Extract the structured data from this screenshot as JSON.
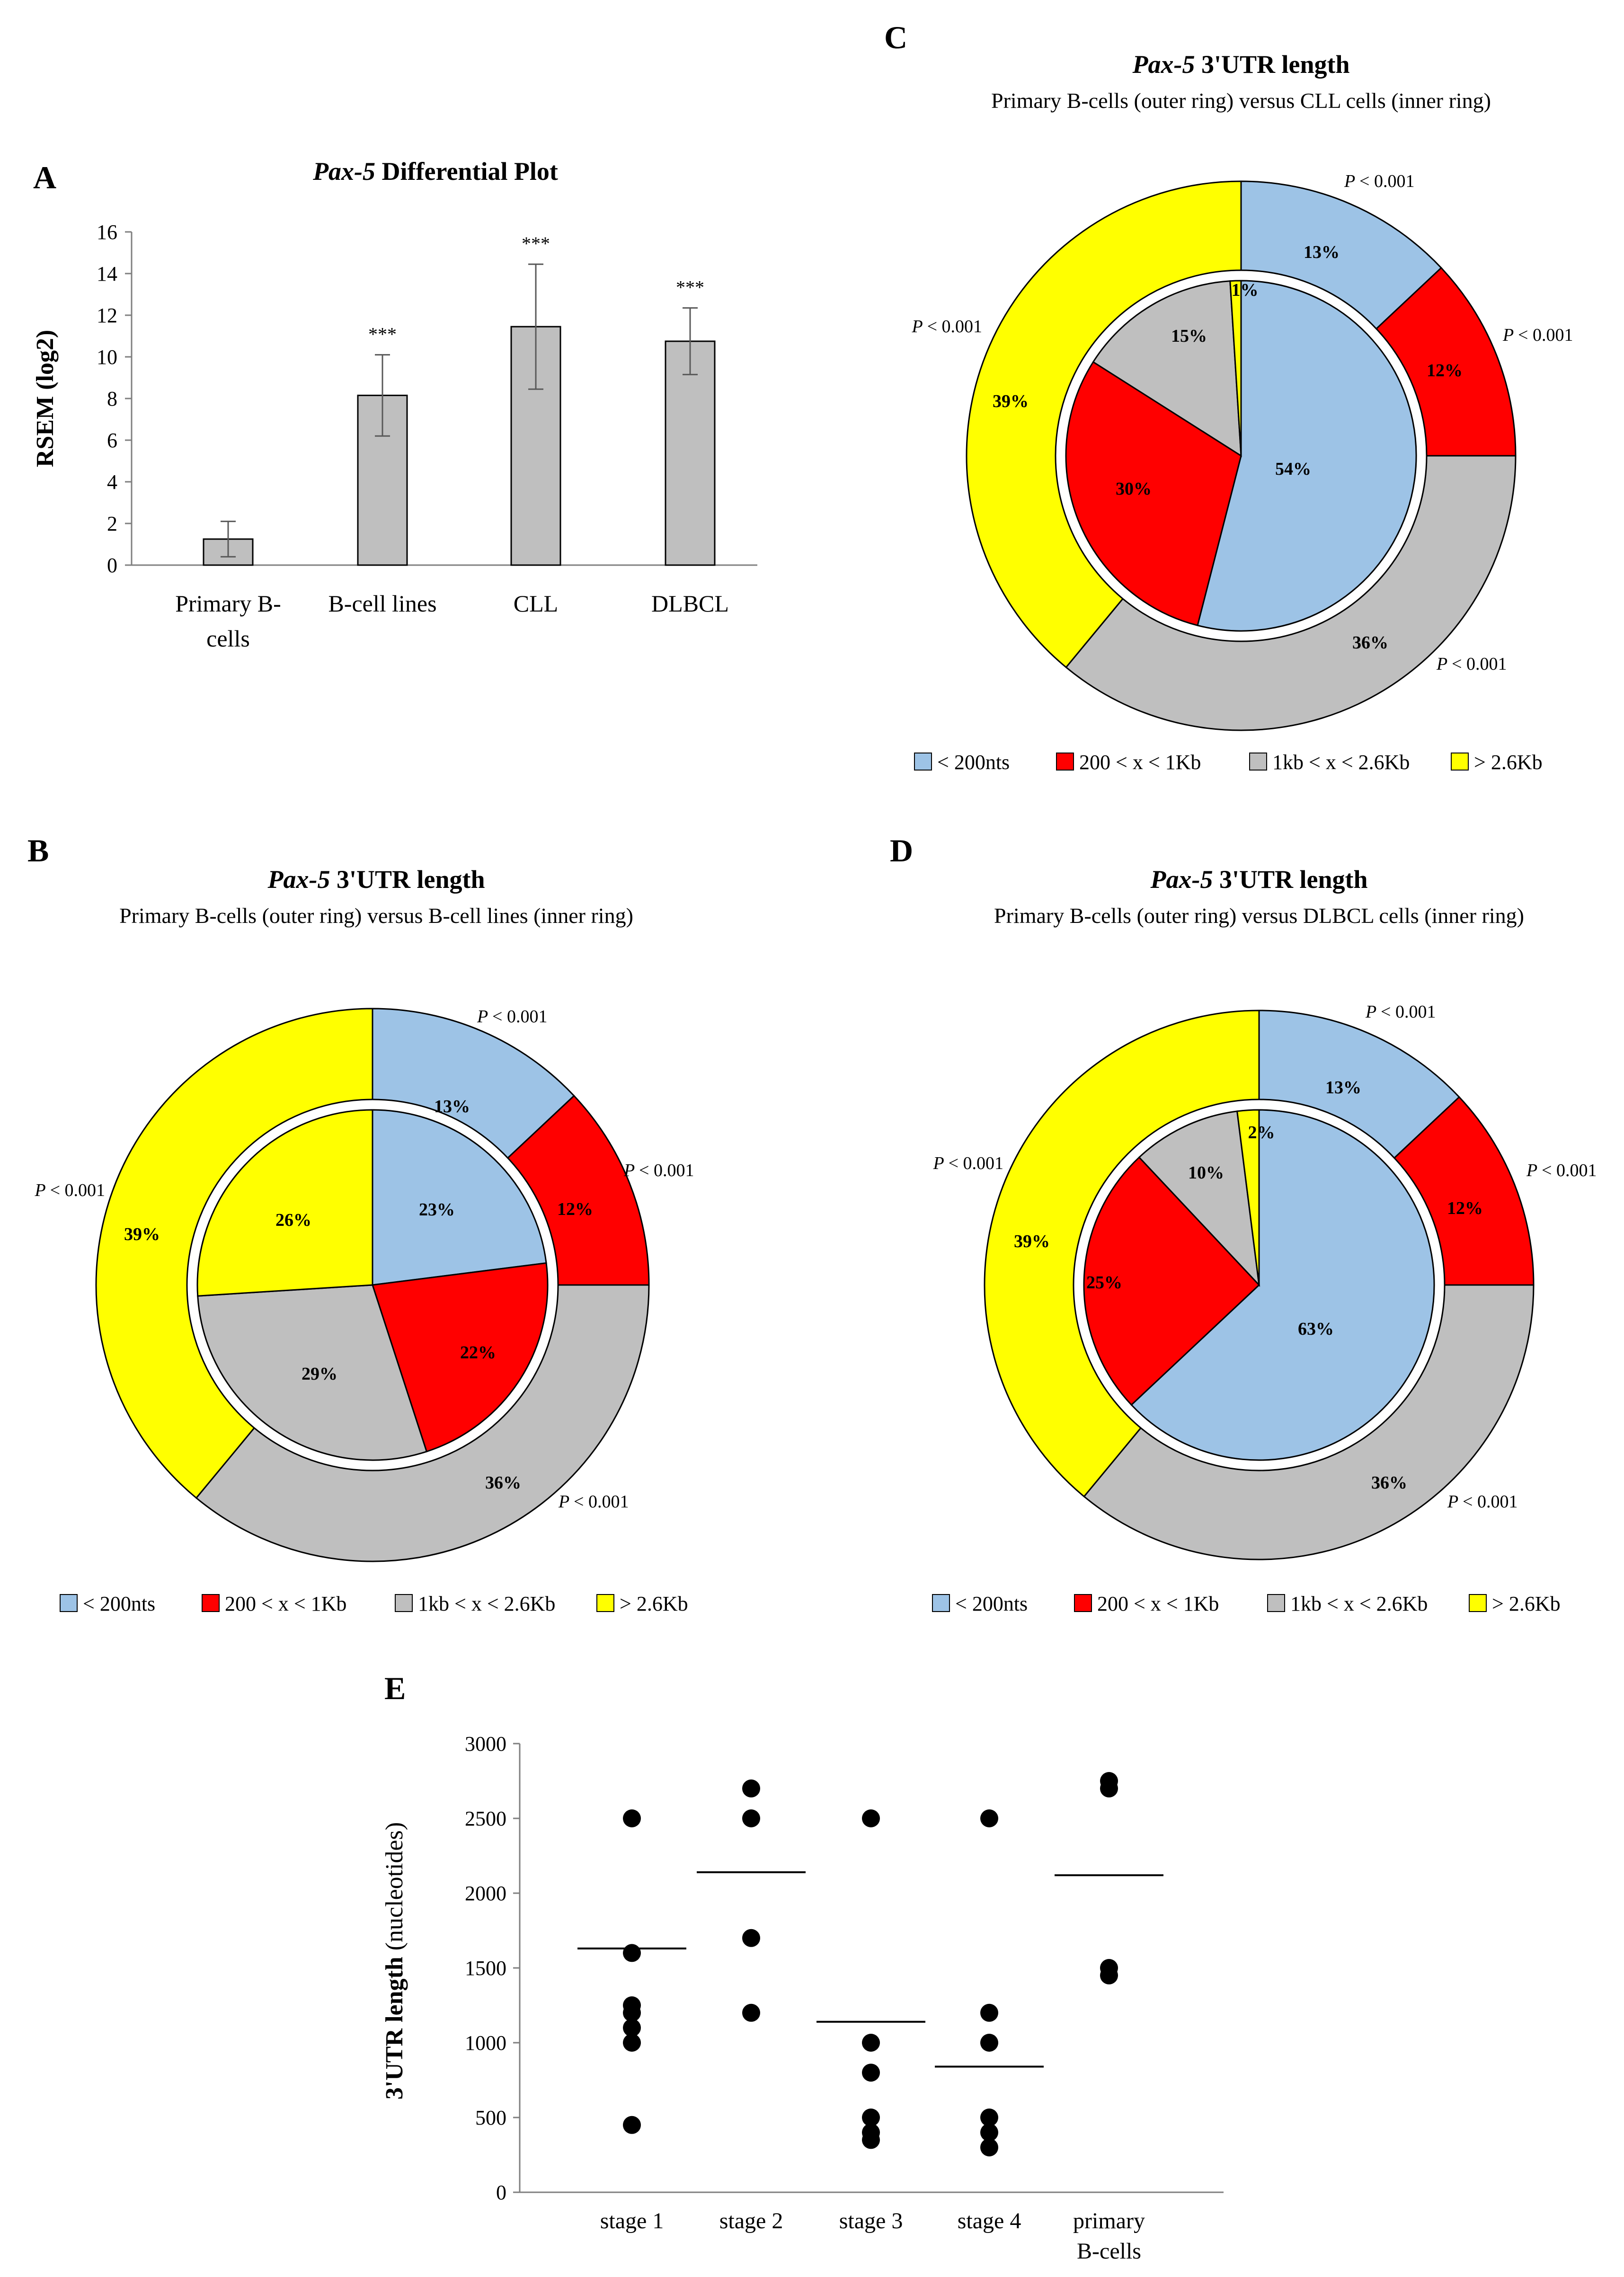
{
  "colors": {
    "blue": "#9dc3e6",
    "red": "#ff0000",
    "gray": "#bfbfbf",
    "yellow": "#ffff00",
    "bar": "#bfbfbf"
  },
  "legend": [
    "< 200nts",
    "200 < x < 1Kb",
    "1kb < x < 2.6Kb",
    "> 2.6Kb"
  ],
  "chart_data": [
    {
      "panel": "A",
      "type": "bar",
      "title_italic": "Pax-5",
      "title_rest": " Differential Plot",
      "ylabel": "RSEM (log2)",
      "ylim": [
        0,
        16
      ],
      "yticks": [
        "0",
        "2",
        "4",
        "6",
        "8",
        "10",
        "12",
        "14",
        "16"
      ],
      "categories": [
        [
          "Primary B-",
          "cells"
        ],
        [
          "B-cell lines"
        ],
        [
          "CLL"
        ],
        [
          "DLBCL"
        ]
      ],
      "values": [
        1.25,
        8.15,
        11.45,
        10.75
      ],
      "errors": [
        0.85,
        1.95,
        3.0,
        1.6
      ],
      "significance": [
        "",
        "***",
        "***",
        "***"
      ]
    },
    {
      "panel": "B",
      "type": "pie",
      "title_italic": "Pax-5",
      "title_rest": " 3'UTR length",
      "subtitle": "Primary B-cells (outer ring) versus B-cell lines (inner ring)",
      "outer": [
        13,
        12,
        36,
        39
      ],
      "inner": [
        23,
        22,
        29,
        26
      ],
      "outer_labels": [
        "13%",
        "12%",
        "36%",
        "39%"
      ],
      "inner_labels": [
        "23%",
        "22%",
        "29%",
        "26%"
      ],
      "pvalues": [
        "< 0.001",
        "< 0.001",
        "< 0.001",
        "< 0.001"
      ]
    },
    {
      "panel": "C",
      "type": "pie",
      "title_italic": "Pax-5",
      "title_rest": " 3'UTR length",
      "subtitle": "Primary B-cells (outer ring) versus CLL cells (inner ring)",
      "outer": [
        13,
        12,
        36,
        39
      ],
      "inner": [
        54,
        30,
        15,
        1
      ],
      "outer_labels": [
        "13%",
        "12%",
        "36%",
        "39%"
      ],
      "inner_labels": [
        "54%",
        "30%",
        "15%",
        "1%"
      ],
      "pvalues": [
        "< 0.001",
        "< 0.001",
        "< 0.001",
        "< 0.001"
      ]
    },
    {
      "panel": "D",
      "type": "pie",
      "title_italic": "Pax-5",
      "title_rest": " 3'UTR length",
      "subtitle": "Primary B-cells (outer ring) versus DLBCL cells (inner ring)",
      "outer": [
        13,
        12,
        36,
        39
      ],
      "inner": [
        63,
        25,
        10,
        2
      ],
      "outer_labels": [
        "13%",
        "12%",
        "36%",
        "39%"
      ],
      "inner_labels": [
        "63%",
        "25%",
        "10%",
        "2%"
      ],
      "pvalues": [
        "< 0.001",
        "< 0.001",
        "< 0.001",
        "< 0.001"
      ]
    },
    {
      "panel": "E",
      "type": "scatter",
      "ylabel_bold": "3'UTR length",
      "ylabel_rest": " (nucleotides)",
      "ylim": [
        0,
        3000
      ],
      "yticks": [
        "0",
        "500",
        "1000",
        "1500",
        "2000",
        "2500",
        "3000"
      ],
      "categories": [
        [
          "stage 1"
        ],
        [
          "stage 2"
        ],
        [
          "stage 3"
        ],
        [
          "stage 4"
        ],
        [
          "primary",
          "B-cells"
        ]
      ],
      "points": [
        [
          2500,
          1600,
          1250,
          1200,
          1100,
          1000,
          450
        ],
        [
          2700,
          2500,
          1700,
          1200
        ],
        [
          2500,
          1000,
          800,
          500,
          400,
          350
        ],
        [
          2500,
          1200,
          1000,
          500,
          400,
          300
        ],
        [
          2750,
          2700,
          1500,
          1450
        ]
      ],
      "means": [
        1630,
        2140,
        1140,
        840,
        2120
      ]
    }
  ]
}
